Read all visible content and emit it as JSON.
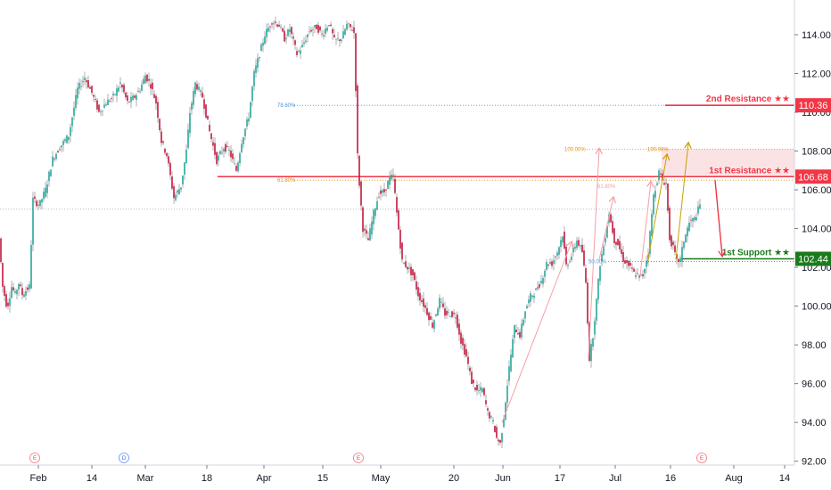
{
  "chart_data": {
    "type": "candlestick",
    "y_axis": {
      "position": "right",
      "ylim": [
        91.8,
        115.7
      ],
      "ticks": [
        "92.00",
        "94.00",
        "96.00",
        "98.00",
        "100.00",
        "102.00",
        "104.00",
        "106.00",
        "108.00",
        "110.00",
        "112.00",
        "114.00"
      ]
    },
    "x_axis": {
      "ticks": [
        "Feb",
        "14",
        "Mar",
        "18",
        "Apr",
        "15",
        "May",
        "20",
        "Jun",
        "17",
        "Jul",
        "16",
        "Aug",
        "14"
      ]
    },
    "grid": false,
    "price_path": [
      [
        0,
        103.5
      ],
      [
        4,
        101.0
      ],
      [
        9,
        99.9
      ],
      [
        14,
        101.0
      ],
      [
        18,
        100.6
      ],
      [
        22,
        101.2
      ],
      [
        26,
        100.6
      ],
      [
        34,
        101.0
      ],
      [
        38,
        105.5
      ],
      [
        45,
        105.2
      ],
      [
        52,
        106.0
      ],
      [
        60,
        107.6
      ],
      [
        68,
        108.2
      ],
      [
        78,
        108.8
      ],
      [
        88,
        111.2
      ],
      [
        96,
        111.8
      ],
      [
        104,
        111.0
      ],
      [
        112,
        110.0
      ],
      [
        120,
        110.5
      ],
      [
        128,
        110.8
      ],
      [
        136,
        111.5
      ],
      [
        144,
        110.5
      ],
      [
        152,
        110.8
      ],
      [
        158,
        111.2
      ],
      [
        164,
        111.9
      ],
      [
        170,
        111.4
      ],
      [
        176,
        110.5
      ],
      [
        182,
        108.5
      ],
      [
        188,
        107.8
      ],
      [
        196,
        105.6
      ],
      [
        204,
        106.2
      ],
      [
        210,
        108.0
      ],
      [
        214,
        110.0
      ],
      [
        220,
        111.5
      ],
      [
        228,
        110.8
      ],
      [
        236,
        109.0
      ],
      [
        244,
        107.5
      ],
      [
        252,
        108.2
      ],
      [
        258,
        108.0
      ],
      [
        266,
        107.0
      ],
      [
        272,
        108.5
      ],
      [
        280,
        109.8
      ],
      [
        286,
        112.0
      ],
      [
        292,
        113.0
      ],
      [
        298,
        114.0
      ],
      [
        306,
        114.7
      ],
      [
        314,
        114.5
      ],
      [
        320,
        113.8
      ],
      [
        326,
        114.3
      ],
      [
        334,
        113.0
      ],
      [
        340,
        113.4
      ],
      [
        348,
        114.2
      ],
      [
        356,
        114.4
      ],
      [
        362,
        114.0
      ],
      [
        370,
        114.6
      ],
      [
        376,
        113.7
      ],
      [
        384,
        113.8
      ],
      [
        390,
        114.5
      ],
      [
        396,
        114.3
      ],
      [
        399,
        114.0
      ],
      [
        401,
        108.5
      ],
      [
        404,
        106.3
      ],
      [
        408,
        104.0
      ],
      [
        414,
        103.4
      ],
      [
        420,
        104.8
      ],
      [
        426,
        105.8
      ],
      [
        432,
        105.9
      ],
      [
        438,
        106.6
      ],
      [
        442,
        106.7
      ],
      [
        446,
        104.8
      ],
      [
        452,
        102.3
      ],
      [
        458,
        102.0
      ],
      [
        464,
        101.6
      ],
      [
        470,
        100.6
      ],
      [
        478,
        99.9
      ],
      [
        486,
        99.0
      ],
      [
        494,
        100.3
      ],
      [
        500,
        99.6
      ],
      [
        506,
        99.6
      ],
      [
        512,
        99.5
      ],
      [
        518,
        98.2
      ],
      [
        524,
        97.4
      ],
      [
        530,
        96.1
      ],
      [
        536,
        95.6
      ],
      [
        542,
        95.7
      ],
      [
        548,
        94.5
      ],
      [
        554,
        94.0
      ],
      [
        558,
        93.2
      ],
      [
        562,
        92.9
      ],
      [
        566,
        94.3
      ],
      [
        572,
        96.8
      ],
      [
        578,
        98.9
      ],
      [
        584,
        98.5
      ],
      [
        590,
        99.8
      ],
      [
        596,
        100.5
      ],
      [
        602,
        100.8
      ],
      [
        608,
        101.3
      ],
      [
        614,
        102.2
      ],
      [
        620,
        102.2
      ],
      [
        626,
        102.8
      ],
      [
        632,
        103.7
      ],
      [
        636,
        102.1
      ],
      [
        642,
        102.6
      ],
      [
        648,
        103.4
      ],
      [
        654,
        102.8
      ],
      [
        658,
        101.2
      ],
      [
        662,
        97.3
      ],
      [
        666,
        98.5
      ],
      [
        670,
        100.3
      ],
      [
        674,
        102.2
      ],
      [
        678,
        103.1
      ],
      [
        684,
        104.8
      ],
      [
        690,
        103.4
      ],
      [
        694,
        103.2
      ],
      [
        700,
        102.4
      ],
      [
        706,
        102.1
      ],
      [
        712,
        101.7
      ],
      [
        718,
        101.5
      ],
      [
        722,
        101.6
      ],
      [
        728,
        102.8
      ],
      [
        734,
        105.7
      ],
      [
        740,
        106.9
      ],
      [
        744,
        106.5
      ],
      [
        748,
        106.3
      ],
      [
        752,
        103.5
      ],
      [
        756,
        103.0
      ],
      [
        760,
        102.3
      ],
      [
        764,
        102.4
      ],
      [
        768,
        103.4
      ],
      [
        774,
        104.3
      ],
      [
        780,
        104.5
      ],
      [
        786,
        105.2
      ]
    ],
    "levels": [
      {
        "label": "2nd Resistance ★★",
        "price": "110.36",
        "value": 110.36,
        "color": "#f23645"
      },
      {
        "label": "1st Resistance ★★",
        "price": "106.68",
        "value": 106.68,
        "color": "#f23645"
      },
      {
        "label": "1st Support ★★",
        "price": "102.44",
        "value": 102.44,
        "color": "#1b7b1b"
      }
    ],
    "fib_labels": {
      "f786": "78.60%",
      "f618_left": "61.80%",
      "f618_right": "61.80%",
      "f100_left": "100.00%",
      "f100_right": "100.00%",
      "f50": "50.00%"
    },
    "reference_price": 105.0,
    "event_markers": [
      "E",
      "D",
      "E",
      "E"
    ],
    "colors": {
      "up": "#26a69a",
      "down": "#c2183f",
      "resistance": "#f23645",
      "support": "#1b7b1b",
      "fib_blue": "#4a90d9",
      "fib_orange": "#e68a00",
      "arrow_pink": "#f4a0a8",
      "arrow_gold": "#c8a000",
      "axis_text": "#131722"
    }
  }
}
